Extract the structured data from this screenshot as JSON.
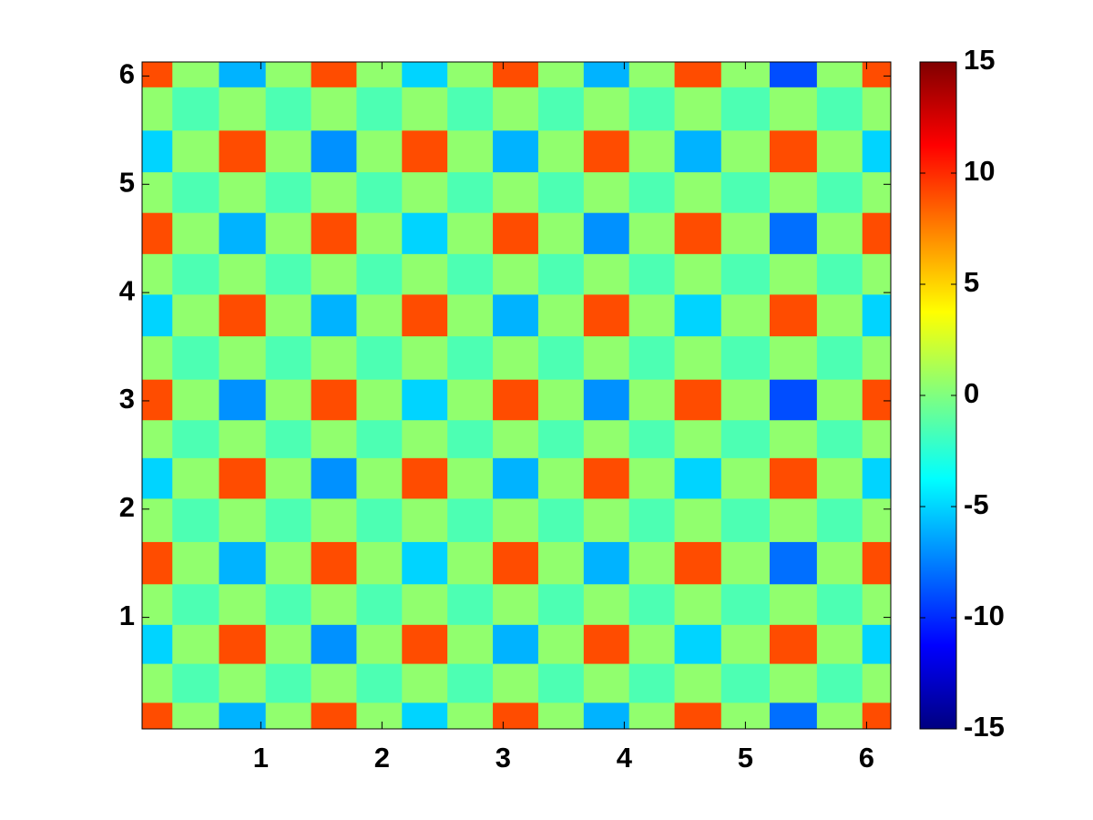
{
  "chart_data": {
    "type": "heatmap",
    "colormap": "jet",
    "x": [
      0.08,
      0.46,
      0.85,
      1.23,
      1.6,
      1.98,
      2.35,
      2.73,
      3.1,
      3.48,
      3.85,
      4.23,
      4.6,
      5.0,
      5.4,
      5.78,
      6.15
    ],
    "y": [
      0.03,
      0.4,
      0.75,
      1.12,
      1.5,
      1.9,
      2.3,
      2.65,
      3.0,
      3.4,
      3.8,
      4.17,
      4.55,
      4.93,
      5.3,
      5.7,
      6.1
    ],
    "z": [
      [
        9,
        0.5,
        -6,
        0.5,
        9,
        0.5,
        -5,
        0.5,
        9,
        0.5,
        -6,
        0.5,
        9,
        0.5,
        -8,
        0.5,
        9
      ],
      [
        0.5,
        -1.5,
        0.5,
        -1.5,
        0.5,
        -1.5,
        0.5,
        -1.5,
        0.5,
        -1.5,
        0.5,
        -1.5,
        0.5,
        -1.5,
        0.5,
        -1.5,
        0.5
      ],
      [
        -5,
        0.5,
        9,
        0.5,
        -7,
        0.5,
        9,
        0.5,
        -6,
        0.5,
        9,
        0.5,
        -5,
        0.5,
        9,
        0.5,
        -5
      ],
      [
        0.5,
        -1.5,
        0.5,
        -1.5,
        0.5,
        -1.5,
        0.5,
        -1.5,
        0.5,
        -1.5,
        0.5,
        -1.5,
        0.5,
        -1.5,
        0.5,
        -1.5,
        0.5
      ],
      [
        9,
        0.5,
        -6,
        0.5,
        9,
        0.5,
        -5,
        0.5,
        9,
        0.5,
        -6,
        0.5,
        9,
        0.5,
        -8,
        0.5,
        9
      ],
      [
        0.5,
        -1.5,
        0.5,
        -1.5,
        0.5,
        -1.5,
        0.5,
        -1.5,
        0.5,
        -1.5,
        0.5,
        -1.5,
        0.5,
        -1.5,
        0.5,
        -1.5,
        0.5
      ],
      [
        -5,
        0.5,
        9,
        0.5,
        -7,
        0.5,
        9,
        0.5,
        -6,
        0.5,
        9,
        0.5,
        -5,
        0.5,
        9,
        0.5,
        -5
      ],
      [
        0.5,
        -1.5,
        0.5,
        -1.5,
        0.5,
        -1.5,
        0.5,
        -1.5,
        0.5,
        -1.5,
        0.5,
        -1.5,
        0.5,
        -1.5,
        0.5,
        -1.5,
        0.5
      ],
      [
        9,
        0.5,
        -7,
        0.5,
        9,
        0.5,
        -5,
        0.5,
        9,
        0.5,
        -7,
        0.5,
        9,
        0.5,
        -9,
        0.5,
        9
      ],
      [
        0.5,
        -1.5,
        0.5,
        -1.5,
        0.5,
        -1.5,
        0.5,
        -1.5,
        0.5,
        -1.5,
        0.5,
        -1.5,
        0.5,
        -1.5,
        0.5,
        -1.5,
        0.5
      ],
      [
        -5,
        0.5,
        9,
        0.5,
        -6,
        0.5,
        9,
        0.5,
        -6,
        0.5,
        9,
        0.5,
        -5,
        0.5,
        9,
        0.5,
        -5
      ],
      [
        0.5,
        -1.5,
        0.5,
        -1.5,
        0.5,
        -1.5,
        0.5,
        -1.5,
        0.5,
        -1.5,
        0.5,
        -1.5,
        0.5,
        -1.5,
        0.5,
        -1.5,
        0.5
      ],
      [
        9,
        0.5,
        -6,
        0.5,
        9,
        0.5,
        -5,
        0.5,
        9,
        0.5,
        -7,
        0.5,
        9,
        0.5,
        -8,
        0.5,
        9
      ],
      [
        0.5,
        -1.5,
        0.5,
        -1.5,
        0.5,
        -1.5,
        0.5,
        -1.5,
        0.5,
        -1.5,
        0.5,
        -1.5,
        0.5,
        -1.5,
        0.5,
        -1.5,
        0.5
      ],
      [
        -5,
        0.5,
        9,
        0.5,
        -7,
        0.5,
        9,
        0.5,
        -6,
        0.5,
        9,
        0.5,
        -6,
        0.5,
        9,
        0.5,
        -5
      ],
      [
        0.5,
        -1.5,
        0.5,
        -1.5,
        0.5,
        -1.5,
        0.5,
        -1.5,
        0.5,
        -1.5,
        0.5,
        -1.5,
        0.5,
        -1.5,
        0.5,
        -1.5,
        0.5
      ],
      [
        9,
        0.5,
        -6,
        0.5,
        9,
        0.5,
        -5,
        0.5,
        9,
        0.5,
        -6,
        0.5,
        9,
        0.5,
        -9,
        0.5,
        9
      ]
    ],
    "xlim": [
      0.02,
      6.2
    ],
    "ylim": [
      -0.03,
      6.13
    ],
    "xticks": [
      1,
      2,
      3,
      4,
      5,
      6
    ],
    "yticks": [
      1,
      2,
      3,
      4,
      5,
      6
    ],
    "clim": [
      -15,
      15
    ],
    "cticks": [
      -15,
      -10,
      -5,
      0,
      5,
      10,
      15
    ]
  }
}
